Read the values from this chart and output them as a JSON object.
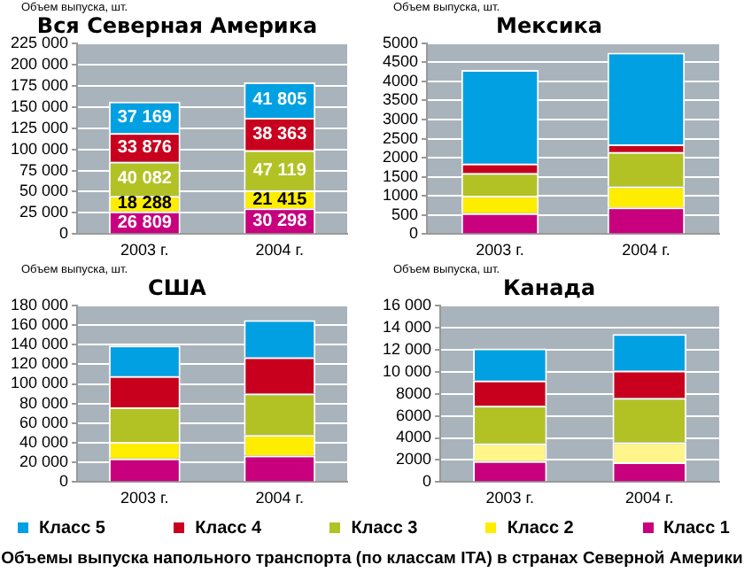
{
  "chart_data": [
    {
      "type": "bar",
      "stacked": true,
      "title": "Вся Северная Америка",
      "ylabel": "Объем выпуска, шт.",
      "categories": [
        "2003 г.",
        "2004 г."
      ],
      "ylim": [
        0,
        225000
      ],
      "yticks": [
        0,
        {
          "value": 25000,
          "label": "25 000"
        },
        {
          "value": 50000,
          "label": "50 000"
        },
        {
          "value": 75000,
          "label": "75 000"
        },
        {
          "value": 100000,
          "label": "100 000"
        },
        {
          "value": 125000,
          "label": "125 000"
        },
        {
          "value": 150000,
          "label": "150 000"
        },
        {
          "value": 175000,
          "label": "175 000"
        },
        {
          "value": 200000,
          "label": "200 000"
        },
        {
          "value": 225000,
          "label": "225 000"
        }
      ],
      "grid": "y",
      "data_labels": true,
      "legend": "bottom",
      "series": [
        {
          "name": "Класс 1",
          "color": "#c8007e",
          "values": [
            26809,
            30298
          ]
        },
        {
          "name": "Класс 2",
          "color": "#ffed00",
          "values": [
            18288,
            21415
          ]
        },
        {
          "name": "Класс 3",
          "color": "#b2c224",
          "values": [
            40082,
            47119
          ]
        },
        {
          "name": "Класс 4",
          "color": "#c8001e",
          "values": [
            33876,
            38363
          ]
        },
        {
          "name": "Класс 5",
          "color": "#00a0e3",
          "values": [
            37169,
            41805
          ]
        }
      ],
      "annotations": [
        "Объемы выпуска напольного транспорта (по классам ITA) в странах Северной Америки"
      ]
    },
    {
      "type": "bar",
      "stacked": true,
      "title": "Мексика",
      "ylabel": "Объем выпуска, шт.",
      "categories": [
        "2003 г.",
        "2004 г."
      ],
      "ylim": [
        0,
        5000
      ],
      "yticks": [
        0,
        500,
        1000,
        1500,
        2000,
        2500,
        3000,
        3500,
        4000,
        4500,
        5000
      ],
      "grid": "y",
      "series": [
        {
          "color": "#c8007e",
          "values": [
            550,
            700
          ]
        },
        {
          "color": "#ffed00",
          "values": [
            450,
            550
          ]
        },
        {
          "color": "#b2c224",
          "values": [
            600,
            900
          ]
        },
        {
          "color": "#c8001e",
          "values": [
            250,
            200
          ]
        },
        {
          "color": "#00a0e3",
          "values": [
            2450,
            2400
          ]
        }
      ]
    },
    {
      "type": "bar",
      "stacked": true,
      "title": "США",
      "ylabel": "Объем выпуска, шт.",
      "categories": [
        "2003 г.",
        "2004 г."
      ],
      "ylim": [
        0,
        180000
      ],
      "yticks": [
        0,
        {
          "value": 20000,
          "label": "20 000"
        },
        {
          "value": 40000,
          "label": "40 000"
        },
        {
          "value": 60000,
          "label": "60 000"
        },
        {
          "value": 80000,
          "label": "80 000"
        },
        {
          "value": 100000,
          "label": "100 000"
        },
        {
          "value": 120000,
          "label": "120 000"
        },
        {
          "value": 140000,
          "label": "140 000"
        },
        {
          "value": 160000,
          "label": "160 000"
        },
        {
          "value": 180000,
          "label": "180 000"
        }
      ],
      "grid": "y",
      "series": [
        {
          "color": "#c8007e",
          "values": [
            24000,
            27000
          ]
        },
        {
          "color": "#ffed00",
          "values": [
            17000,
            21000
          ]
        },
        {
          "color": "#b2c224",
          "values": [
            35000,
            42000
          ]
        },
        {
          "color": "#c8001e",
          "values": [
            32000,
            37000
          ]
        },
        {
          "color": "#00a0e3",
          "values": [
            31000,
            38000
          ]
        }
      ]
    },
    {
      "type": "bar",
      "stacked": true,
      "title": "Канада",
      "ylabel": "Объем выпуска, шт.",
      "categories": [
        "2003 г.",
        "2004 г."
      ],
      "ylim": [
        0,
        16000
      ],
      "yticks": [
        0,
        2000,
        4000,
        6000,
        8000,
        {
          "value": 10000,
          "label": "10 000"
        },
        {
          "value": 12000,
          "label": "12 000"
        },
        {
          "value": 14000,
          "label": "14 000"
        },
        {
          "value": 16000,
          "label": "16 000"
        }
      ],
      "grid": "y",
      "series": [
        {
          "color": "#c8007e",
          "values": [
            1900,
            1800
          ]
        },
        {
          "color": "#fff58a",
          "values": [
            1600,
            1800
          ]
        },
        {
          "color": "#b2c224",
          "values": [
            3400,
            4000
          ]
        },
        {
          "color": "#c8001e",
          "values": [
            2300,
            2500
          ]
        },
        {
          "color": "#00a0e3",
          "values": [
            2900,
            3300
          ]
        }
      ]
    }
  ]
}
